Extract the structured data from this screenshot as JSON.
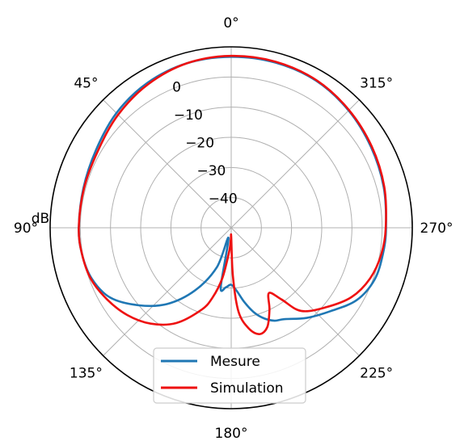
{
  "chart_data": {
    "type": "line",
    "polar": true,
    "theta_zero": "top",
    "theta_direction": "counterclockwise",
    "angle_ticks": [
      "0°",
      "45°",
      "90°",
      "135°",
      "180°",
      "225°",
      "270°",
      "315°"
    ],
    "angle_tick_values": [
      0,
      45,
      90,
      135,
      180,
      225,
      270,
      315
    ],
    "r_label": "dB",
    "r_ticks": [
      "0",
      "−10",
      "−20",
      "−30",
      "−40"
    ],
    "r_tick_values": [
      0,
      -10,
      -20,
      -30,
      -40
    ],
    "rlim": [
      -50,
      10
    ],
    "grid": true,
    "legend_position": "bottom-center",
    "series": [
      {
        "name": "Mesure",
        "color": "#1f77b4",
        "theta_deg": [
          0,
          15,
          30,
          45,
          60,
          75,
          90,
          100,
          110,
          120,
          130,
          140,
          150,
          160,
          165,
          170,
          175,
          180,
          185,
          190,
          195,
          200,
          205,
          210,
          220,
          230,
          240,
          250,
          260,
          270,
          285,
          300,
          315,
          330,
          345,
          360
        ],
        "r_db": [
          6.7,
          6.5,
          5.5,
          3.8,
          1.7,
          0.7,
          0.5,
          0.2,
          -0.8,
          -3.7,
          -10.0,
          -17.0,
          -26.0,
          -36.0,
          -46.5,
          -30.0,
          -30.2,
          -31.1,
          -29.0,
          -25.0,
          -21.0,
          -18.0,
          -16.0,
          -15.0,
          -11.0,
          -7.0,
          -2.0,
          0.5,
          1.0,
          1.3,
          2.3,
          3.5,
          5.0,
          6.3,
          6.7,
          6.7
        ]
      },
      {
        "name": "Simulation",
        "color": "#ee1111",
        "theta_deg": [
          0,
          15,
          30,
          45,
          60,
          75,
          90,
          100,
          110,
          120,
          130,
          140,
          150,
          160,
          165,
          170,
          175,
          178,
          180,
          182,
          185,
          190,
          195,
          200,
          205,
          210,
          215,
          220,
          230,
          240,
          250,
          260,
          270,
          285,
          300,
          315,
          330,
          345,
          360
        ],
        "r_db": [
          7.0,
          6.5,
          5.0,
          3.0,
          1.0,
          0.5,
          0.5,
          0.2,
          -0.5,
          -2.5,
          -5.0,
          -8.5,
          -13.5,
          -21.0,
          -26.0,
          -33.0,
          -42.0,
          -46.0,
          -47.0,
          -34.0,
          -22.0,
          -16.0,
          -13.5,
          -15.0,
          -20.0,
          -25.0,
          -21.0,
          -14.0,
          -9.0,
          -4.0,
          -1.0,
          0.5,
          1.2,
          2.5,
          3.8,
          5.2,
          6.5,
          7.0,
          7.0
        ]
      }
    ]
  }
}
